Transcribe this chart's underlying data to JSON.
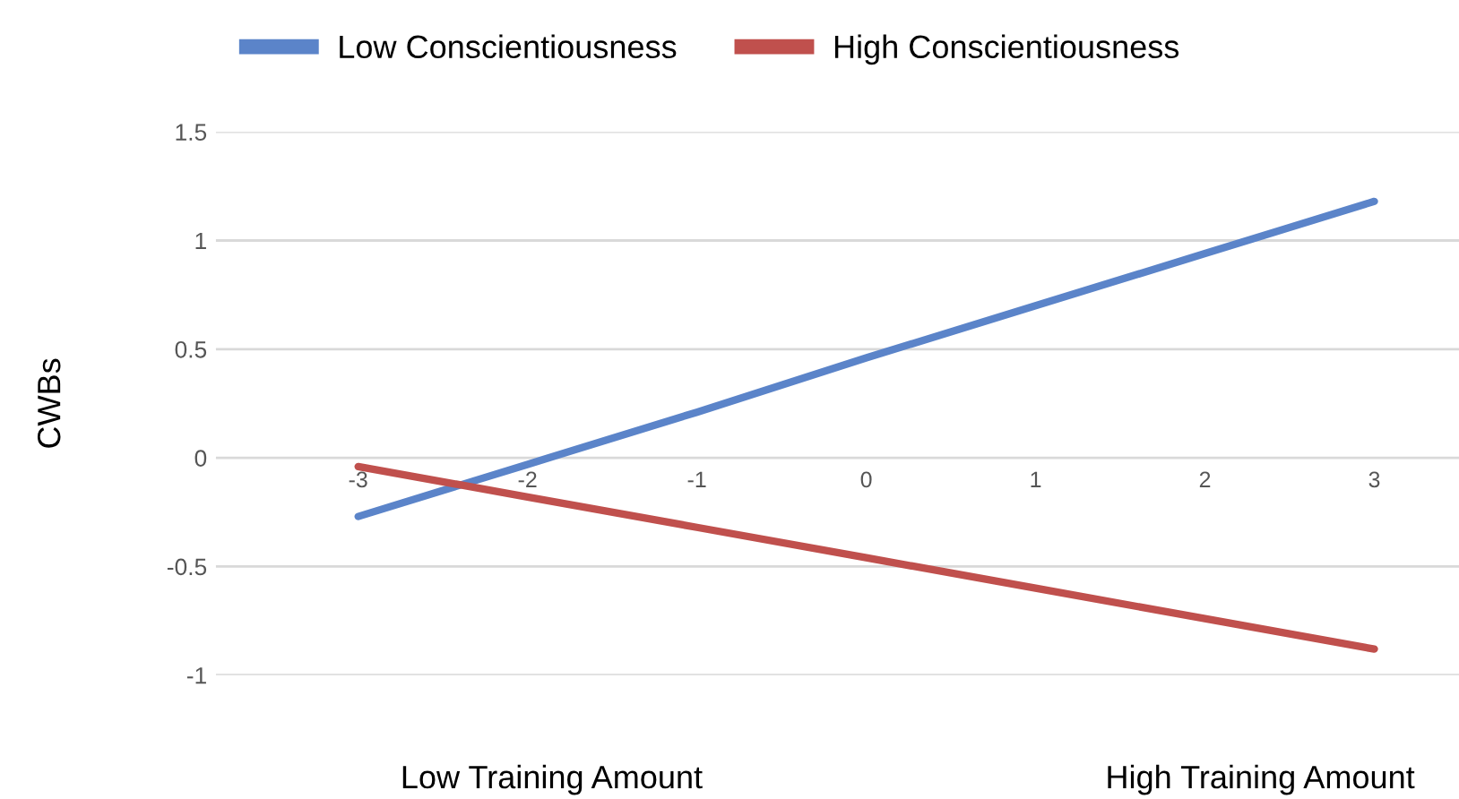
{
  "chart_data": {
    "type": "line",
    "ylabel": "CWBs",
    "categories": [
      "-3",
      "-2",
      "-1",
      "0",
      "1",
      "2",
      "3"
    ],
    "series": [
      {
        "name": "Low Conscientiousness",
        "color": "#5b84c9",
        "values": [
          -0.27,
          -0.03,
          0.21,
          0.46,
          0.7,
          0.94,
          1.18
        ]
      },
      {
        "name": "High Conscientiousness",
        "color": "#c0504d",
        "values": [
          -0.04,
          -0.18,
          -0.32,
          -0.46,
          -0.6,
          -0.74,
          -0.88
        ]
      }
    ],
    "ylim": [
      -1,
      1.5
    ],
    "yticks": [
      -1,
      -0.5,
      0,
      0.5,
      1,
      1.5
    ],
    "grid": "y",
    "legend": "top",
    "marker": "none",
    "line_style": "solid",
    "annotations": [
      "Low Training Amount",
      "High Training Amount"
    ]
  }
}
